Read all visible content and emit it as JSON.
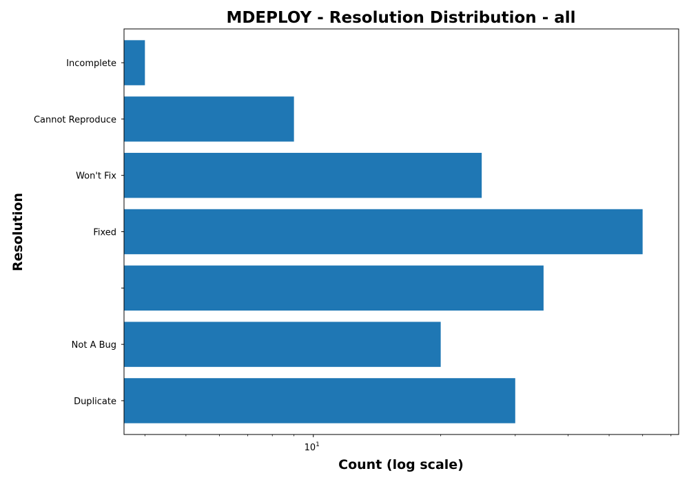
{
  "chart_data": {
    "type": "bar",
    "orientation": "horizontal",
    "title": "MDEPLOY - Resolution Distribution - all",
    "xlabel": "Count (log scale)",
    "ylabel": "Resolution",
    "xscale": "log",
    "xlim": [
      3.57,
      73
    ],
    "grid": false,
    "color": "#1f77b4",
    "x_tick_labels": [
      {
        "value": 10,
        "label": "10",
        "exponent": "1"
      }
    ],
    "x_minor_ticks": [
      4,
      5,
      6,
      7,
      8,
      9,
      20,
      30,
      40,
      50,
      60,
      70
    ],
    "categories": [
      "Duplicate",
      "Not A Bug",
      "",
      "Fixed",
      "Won't Fix",
      "Cannot Reproduce",
      "Incomplete"
    ],
    "values": [
      30,
      20,
      35,
      60,
      25,
      9,
      4
    ]
  }
}
